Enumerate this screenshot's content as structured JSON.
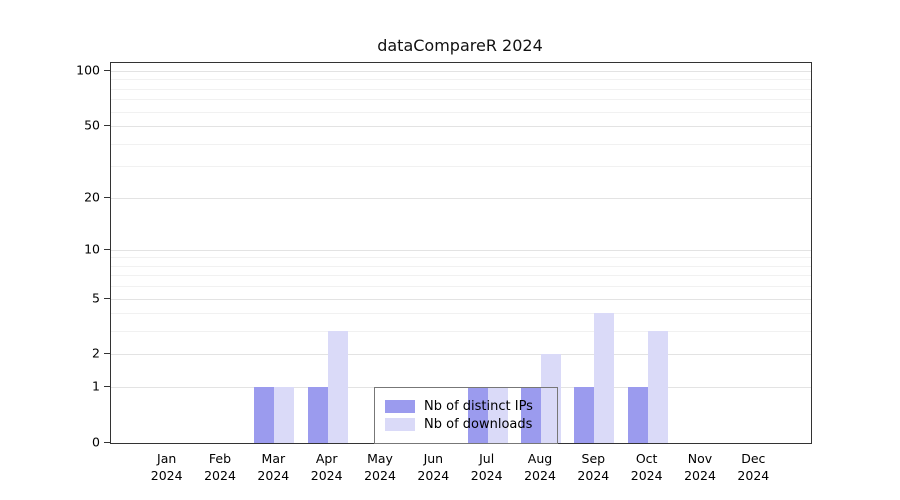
{
  "title": "dataCompareR 2024",
  "chart_data": {
    "type": "bar",
    "title": "dataCompareR 2024",
    "categories": [
      "Jan",
      "Feb",
      "Mar",
      "Apr",
      "May",
      "Jun",
      "Jul",
      "Aug",
      "Sep",
      "Oct",
      "Nov",
      "Dec"
    ],
    "year": "2024",
    "series": [
      {
        "name": "Nb of distinct IPs",
        "color": "#9b9bee",
        "values": [
          0,
          0,
          1,
          1,
          0,
          0,
          1,
          1,
          1,
          1,
          0,
          0
        ]
      },
      {
        "name": "Nb of downloads",
        "color": "#dadaf8",
        "values": [
          0,
          0,
          1,
          3,
          0,
          0,
          1,
          2,
          4,
          3,
          0,
          0
        ]
      }
    ],
    "y_ticks": [
      0,
      1,
      2,
      5,
      10,
      20,
      50,
      100
    ],
    "y_minor_gridlines": [
      3,
      4,
      6,
      7,
      8,
      9,
      30,
      40,
      60,
      70,
      80,
      90
    ],
    "ylim": [
      0,
      100
    ],
    "y_scale": "log10(v+1)",
    "grid": true,
    "legend": {
      "position": "inside-bottom-center",
      "entries": [
        "Nb of distinct IPs",
        "Nb of downloads"
      ]
    },
    "colors": {
      "axis": "#333333",
      "grid_major": "#e3e3e3",
      "grid_minor": "#f1f1f1",
      "text": "#000000",
      "background": "#ffffff"
    }
  }
}
